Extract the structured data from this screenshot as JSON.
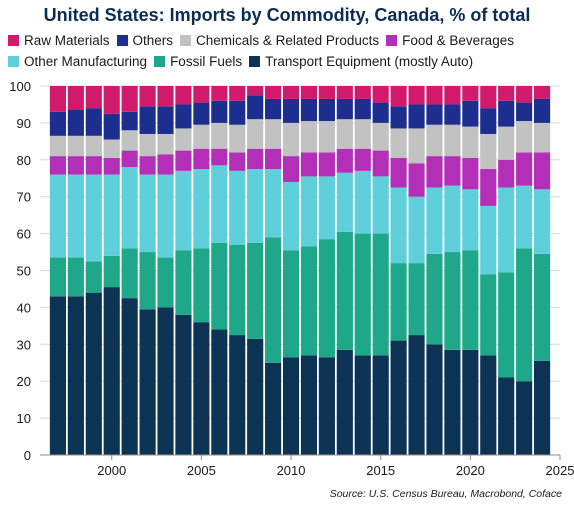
{
  "chart_data": {
    "type": "bar",
    "stacked": true,
    "title": "United States: Imports by Commodity, Canada, % of total",
    "source": "Source: U.S. Census Bureau, Macrobond, Coface",
    "xlim": [
      1996,
      2025
    ],
    "ylim": [
      0,
      100
    ],
    "x_ticks": [
      2000,
      2005,
      2010,
      2015,
      2020,
      2025
    ],
    "y_ticks": [
      0,
      10,
      20,
      30,
      40,
      50,
      60,
      70,
      80,
      90,
      100
    ],
    "grid": true,
    "legend_position": "top",
    "categories": [
      1997,
      1998,
      1999,
      2000,
      2001,
      2002,
      2003,
      2004,
      2005,
      2006,
      2007,
      2008,
      2009,
      2010,
      2011,
      2012,
      2013,
      2014,
      2015,
      2016,
      2017,
      2018,
      2019,
      2020,
      2021,
      2022,
      2023,
      2024
    ],
    "series": [
      {
        "name": "Transport Equipment (mostly Auto)",
        "color": "#0c3354",
        "values": [
          43,
          43,
          44,
          45.5,
          42.5,
          39.5,
          40,
          38,
          36,
          34,
          32.5,
          31.5,
          25,
          26.5,
          27,
          26.5,
          28.5,
          27,
          27,
          31,
          32.5,
          30,
          28.5,
          28.5,
          27,
          21,
          20,
          25.5
        ]
      },
      {
        "name": "Fossil Fuels",
        "color": "#1ea889",
        "values": [
          10.5,
          10.5,
          8.5,
          8.5,
          13.5,
          15.5,
          13.5,
          17.5,
          20,
          23.5,
          24.5,
          26,
          34,
          29,
          29.5,
          32,
          32,
          33,
          33,
          21,
          19.5,
          24.5,
          26.5,
          27,
          22,
          28.5,
          36,
          29
        ]
      },
      {
        "name": "Other Manufacturing",
        "color": "#5fcfdc",
        "values": [
          22.5,
          22.5,
          23.5,
          22,
          22,
          21,
          22.5,
          21.5,
          21.5,
          21,
          20,
          20,
          18.5,
          18.5,
          19,
          17,
          16,
          17,
          15.5,
          20.5,
          18,
          18,
          18,
          16.5,
          18.5,
          23,
          17,
          17.5
        ]
      },
      {
        "name": "Food & Beverages",
        "color": "#b32fb8",
        "values": [
          5,
          5,
          5,
          4.5,
          4.5,
          5,
          5.5,
          5.5,
          5.5,
          4.5,
          5,
          5.5,
          5.5,
          7,
          6.5,
          6.5,
          6.5,
          6,
          7,
          8,
          9,
          8.5,
          8,
          8.5,
          10,
          7.5,
          9,
          10
        ]
      },
      {
        "name": "Chemicals & Related Products",
        "color": "#c2c2c2",
        "values": [
          5.5,
          5.5,
          5.5,
          5,
          5.5,
          6,
          5.5,
          6,
          6.5,
          7,
          7.5,
          8,
          8,
          9,
          8.5,
          8.5,
          8,
          8,
          7.5,
          8,
          9.5,
          8.5,
          8.5,
          8.5,
          9.5,
          9,
          8.5,
          8
        ]
      },
      {
        "name": "Others",
        "color": "#1c2f8f",
        "values": [
          6.5,
          7,
          7.5,
          7,
          5,
          7.5,
          7.5,
          6.5,
          6,
          6,
          6.5,
          6.5,
          5.5,
          6.5,
          6,
          6,
          5.5,
          5.5,
          5.5,
          6,
          6.5,
          5.5,
          5.5,
          7,
          7,
          7,
          5,
          6.5
        ]
      },
      {
        "name": "Raw Materials",
        "color": "#d11a6b",
        "values": [
          7,
          6.5,
          6,
          7.5,
          7,
          5.5,
          5.5,
          5,
          4.5,
          4,
          4,
          2.5,
          3.5,
          3.5,
          3.5,
          3.5,
          3.5,
          3.5,
          4.5,
          5.5,
          5,
          5,
          5,
          4,
          6,
          4,
          4.5,
          3.5
        ]
      }
    ]
  },
  "legend_rows": [
    [
      "Raw Materials",
      "Others",
      "Chemicals & Related Products",
      "Food & Beverages"
    ],
    [
      "Other Manufacturing",
      "Fossil Fuels",
      "Transport Equipment (mostly Auto)"
    ]
  ]
}
